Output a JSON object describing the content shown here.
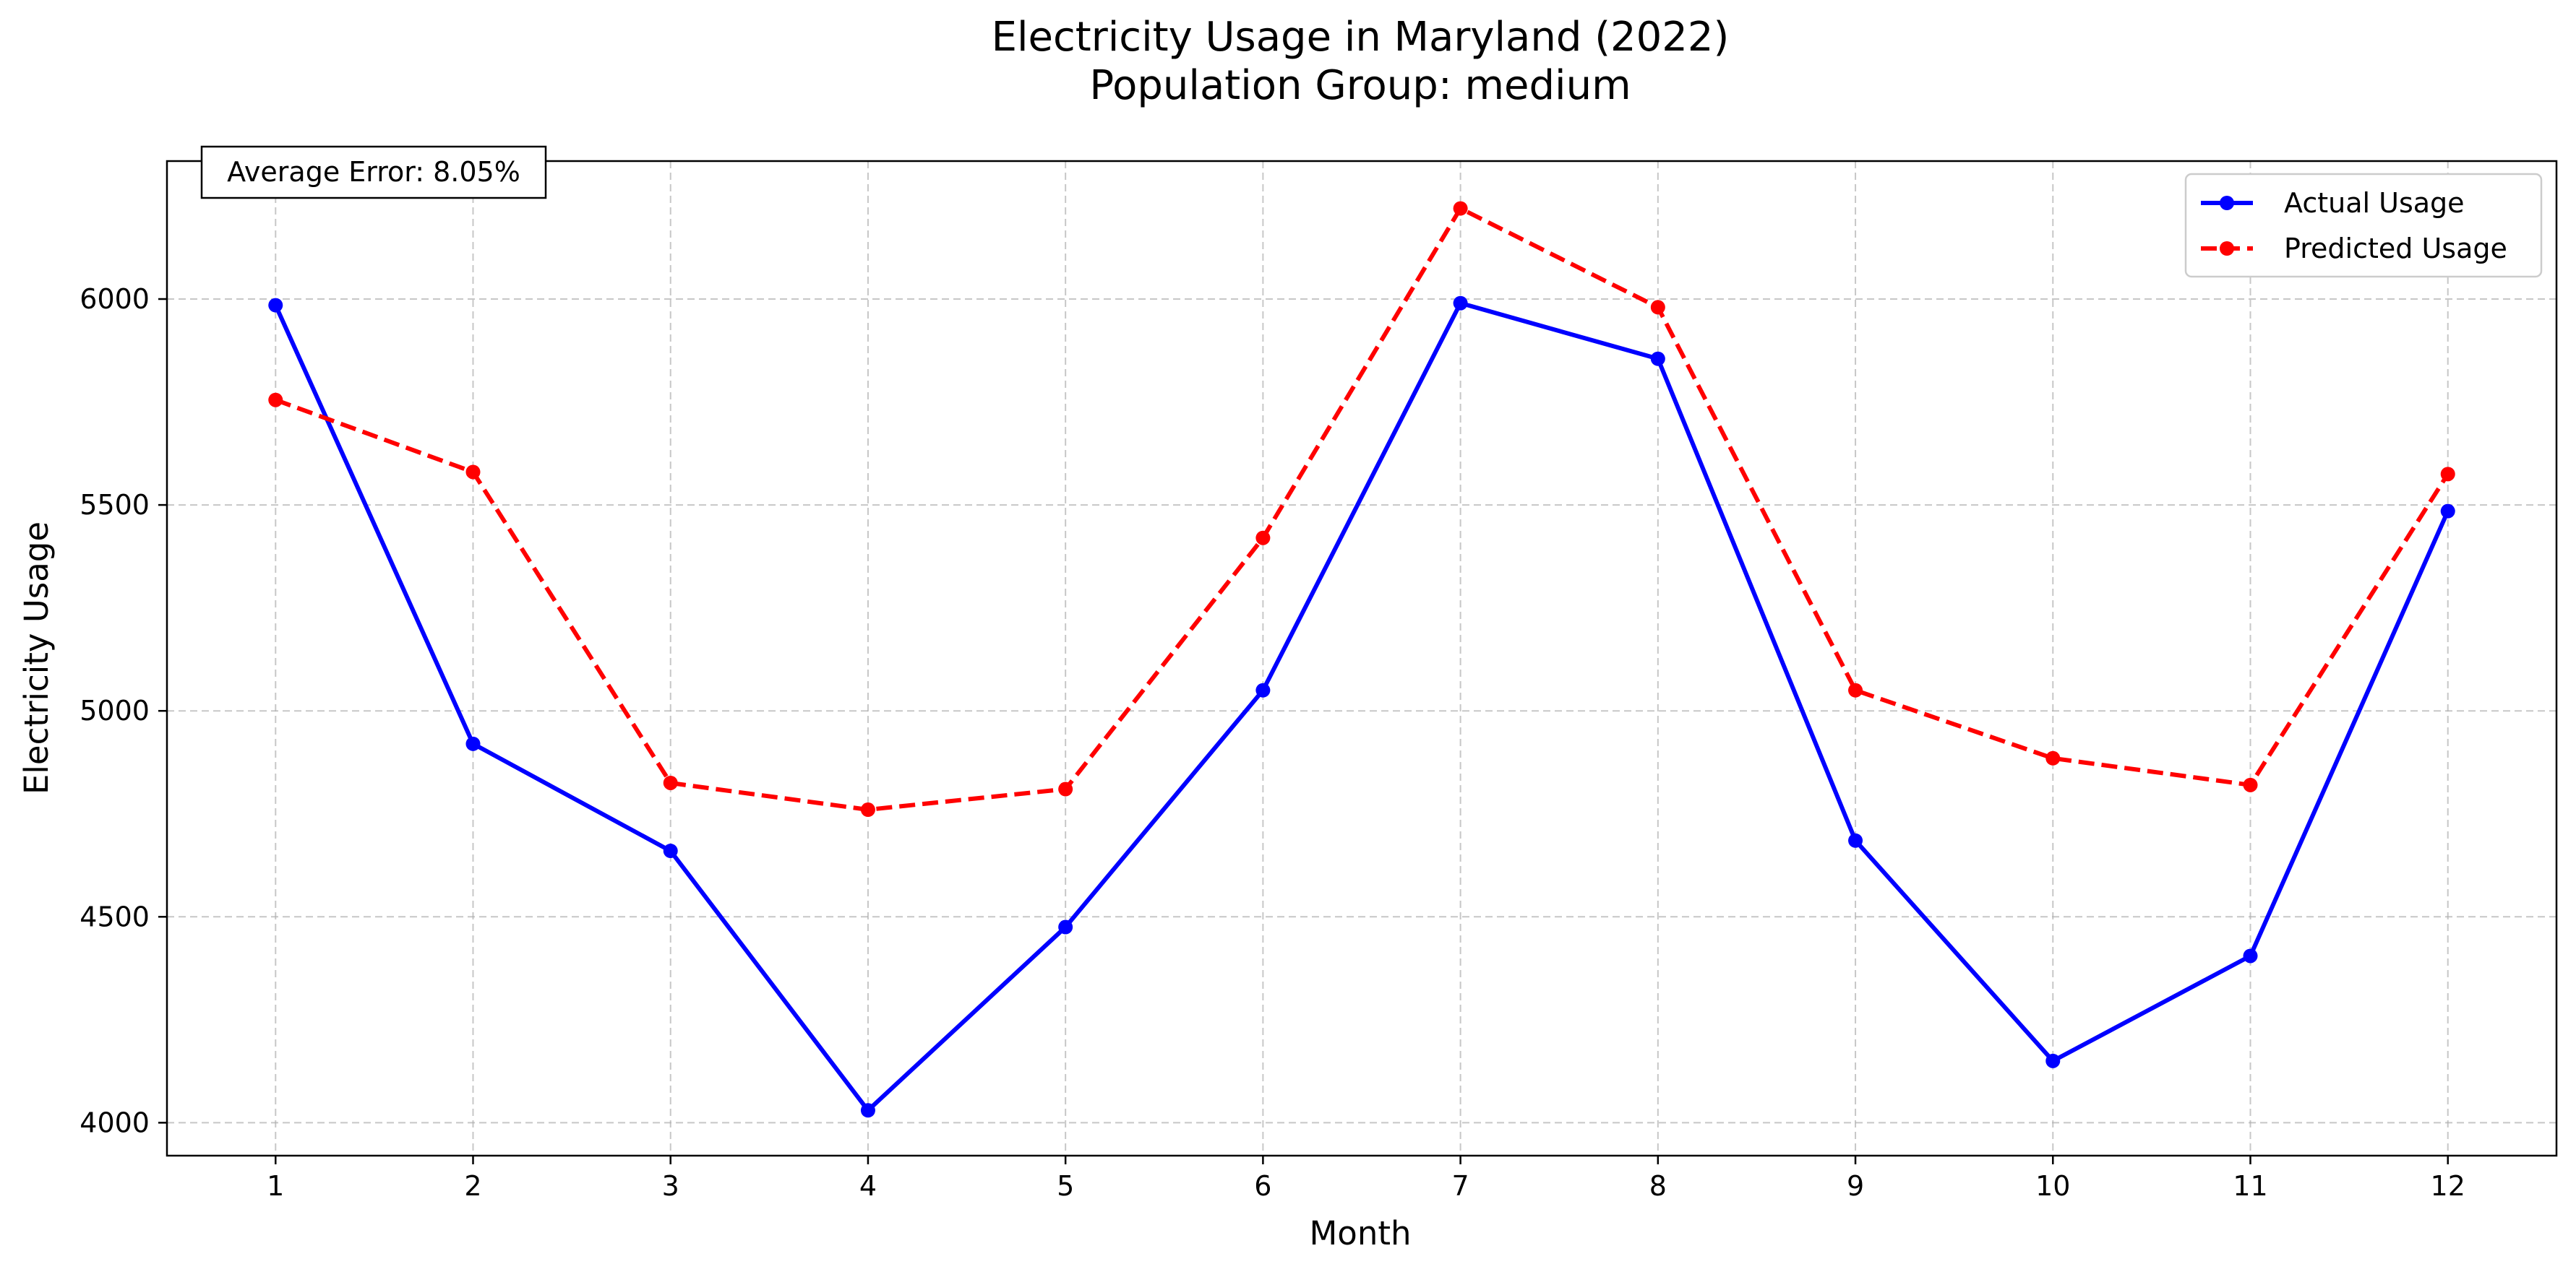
{
  "chart_data": {
    "type": "line",
    "title": "Electricity Usage in Maryland (2022)",
    "subtitle": "Population Group: medium",
    "xlabel": "Month",
    "ylabel": "Electricity Usage",
    "x": [
      1,
      2,
      3,
      4,
      5,
      6,
      7,
      8,
      9,
      10,
      11,
      12
    ],
    "x_ticks": [
      "1",
      "2",
      "3",
      "4",
      "5",
      "6",
      "7",
      "8",
      "9",
      "10",
      "11",
      "12"
    ],
    "xlim": [
      0.45,
      12.55
    ],
    "ylim": [
      3920,
      6335
    ],
    "y_ticks": [
      4000,
      4500,
      5000,
      5500,
      6000
    ],
    "grid": true,
    "legend_position": "top-right",
    "annotation": "Average Error: 8.05%",
    "series": [
      {
        "name": "Actual Usage",
        "color": "#0000ff",
        "style": "solid",
        "marker": "circle",
        "values": [
          5985,
          4920,
          4660,
          4030,
          4475,
          5050,
          5990,
          5855,
          4685,
          4150,
          4405,
          5485
        ]
      },
      {
        "name": "Predicted Usage",
        "color": "#ff0000",
        "style": "dashed",
        "marker": "circle",
        "values": [
          5755,
          5580,
          4825,
          4760,
          4810,
          5420,
          6220,
          5980,
          5050,
          4885,
          4820,
          5575
        ]
      }
    ]
  }
}
